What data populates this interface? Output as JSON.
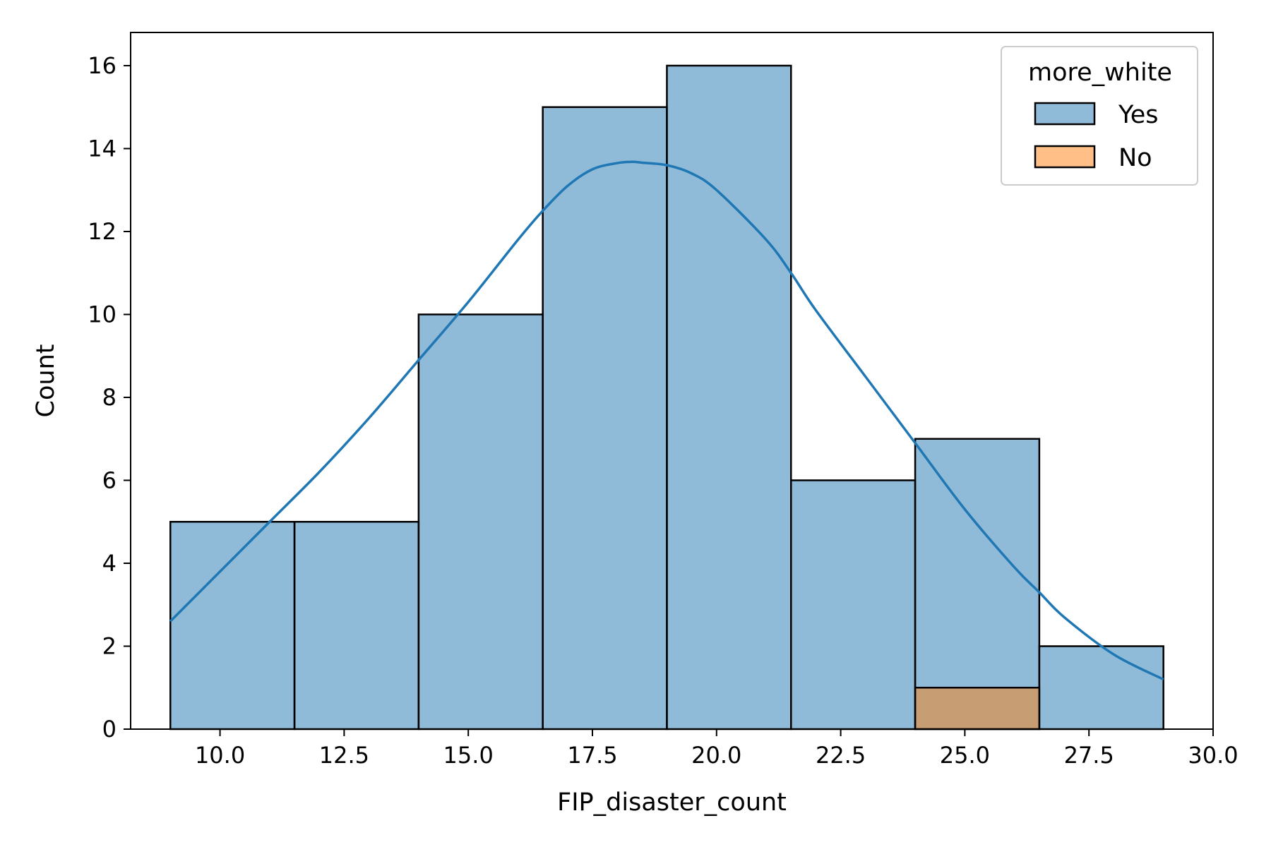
{
  "chart_data": {
    "type": "bar",
    "subtype": "histogram-with-kde",
    "title": "",
    "xlabel": "FIP_disaster_count",
    "ylabel": "Count",
    "xlim": [
      8.2,
      30.0
    ],
    "ylim": [
      0,
      16.8
    ],
    "xticks": [
      10.0,
      12.5,
      15.0,
      17.5,
      20.0,
      22.5,
      25.0,
      27.5,
      30.0
    ],
    "xtick_labels": [
      "10.0",
      "12.5",
      "15.0",
      "17.5",
      "20.0",
      "22.5",
      "25.0",
      "27.5",
      "30.0"
    ],
    "yticks": [
      0,
      2,
      4,
      6,
      8,
      10,
      12,
      14,
      16
    ],
    "ytick_labels": [
      "0",
      "2",
      "4",
      "6",
      "8",
      "10",
      "12",
      "14",
      "16"
    ],
    "bin_edges": [
      9.0,
      11.5,
      14.0,
      16.5,
      19.0,
      21.5,
      24.0,
      26.5,
      29.0
    ],
    "grid": false,
    "legend": {
      "title": "more_white",
      "placement": "top-right"
    },
    "series": [
      {
        "name": "Yes",
        "color": "#1f77b4",
        "values": [
          5,
          5,
          10,
          15,
          16,
          6,
          7,
          2
        ],
        "kde": {
          "x": [
            9.0,
            10.0,
            11.0,
            12.0,
            13.0,
            14.0,
            15.0,
            16.0,
            16.5,
            17.0,
            17.5,
            18.0,
            18.3,
            18.5,
            19.0,
            19.5,
            20.0,
            21.0,
            21.5,
            22.0,
            23.0,
            24.0,
            25.0,
            26.0,
            26.5,
            27.0,
            28.0,
            29.0
          ],
          "y": [
            2.6,
            3.8,
            5.0,
            6.2,
            7.5,
            8.9,
            10.3,
            11.8,
            12.5,
            13.1,
            13.5,
            13.65,
            13.68,
            13.66,
            13.6,
            13.4,
            13.0,
            11.8,
            11.0,
            10.1,
            8.5,
            6.9,
            5.3,
            3.9,
            3.3,
            2.7,
            1.8,
            1.2
          ]
        }
      },
      {
        "name": "No",
        "color": "#ff7f0e",
        "values": [
          0,
          0,
          0,
          0,
          0,
          0,
          1,
          0
        ]
      }
    ]
  }
}
